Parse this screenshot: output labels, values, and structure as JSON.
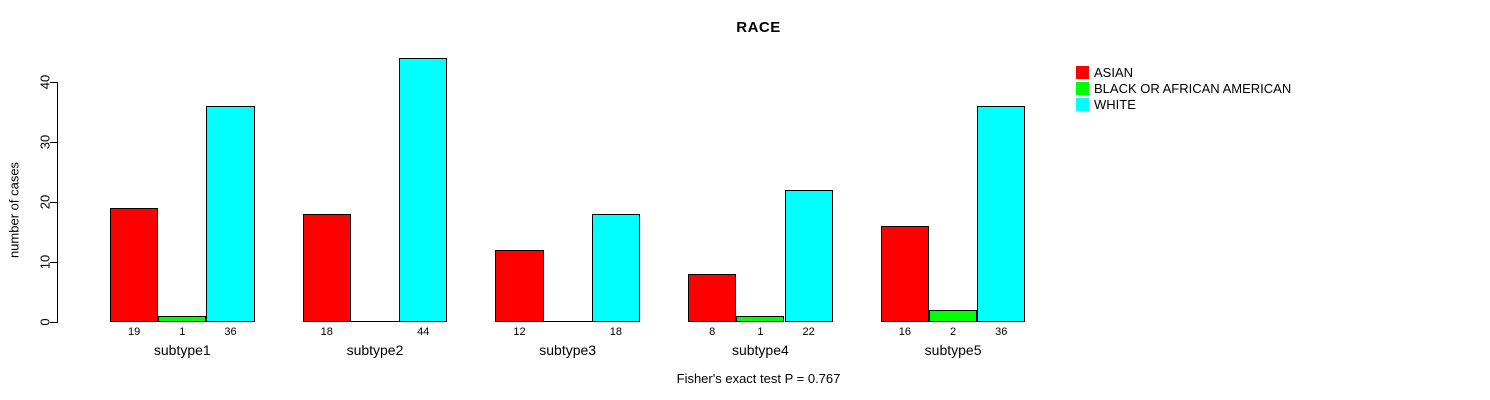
{
  "figure": {
    "background": "#ffffff",
    "text_color": "#000000",
    "axis_color": "#000000"
  },
  "chart_data": {
    "type": "bar",
    "title": "RACE",
    "ylabel": "number of cases",
    "xlabel": "",
    "footnote": "Fisher's exact test P = 0.767",
    "categories": [
      "subtype1",
      "subtype2",
      "subtype3",
      "subtype4",
      "subtype5"
    ],
    "series": [
      {
        "name": "ASIAN",
        "color": "#ff0000",
        "values": [
          19,
          18,
          12,
          8,
          16
        ]
      },
      {
        "name": "BLACK OR AFRICAN AMERICAN",
        "color": "#00ff00",
        "values": [
          1,
          0,
          0,
          1,
          2
        ]
      },
      {
        "name": "WHITE",
        "color": "#00ffff",
        "values": [
          36,
          44,
          18,
          22,
          36
        ]
      }
    ],
    "yticks": [
      0,
      10,
      20,
      30,
      40
    ],
    "ylim": [
      0,
      40
    ],
    "grid": false,
    "bar_value_labels_shown": true,
    "zero_values_unlabeled": true,
    "legend_position": "top-right"
  }
}
